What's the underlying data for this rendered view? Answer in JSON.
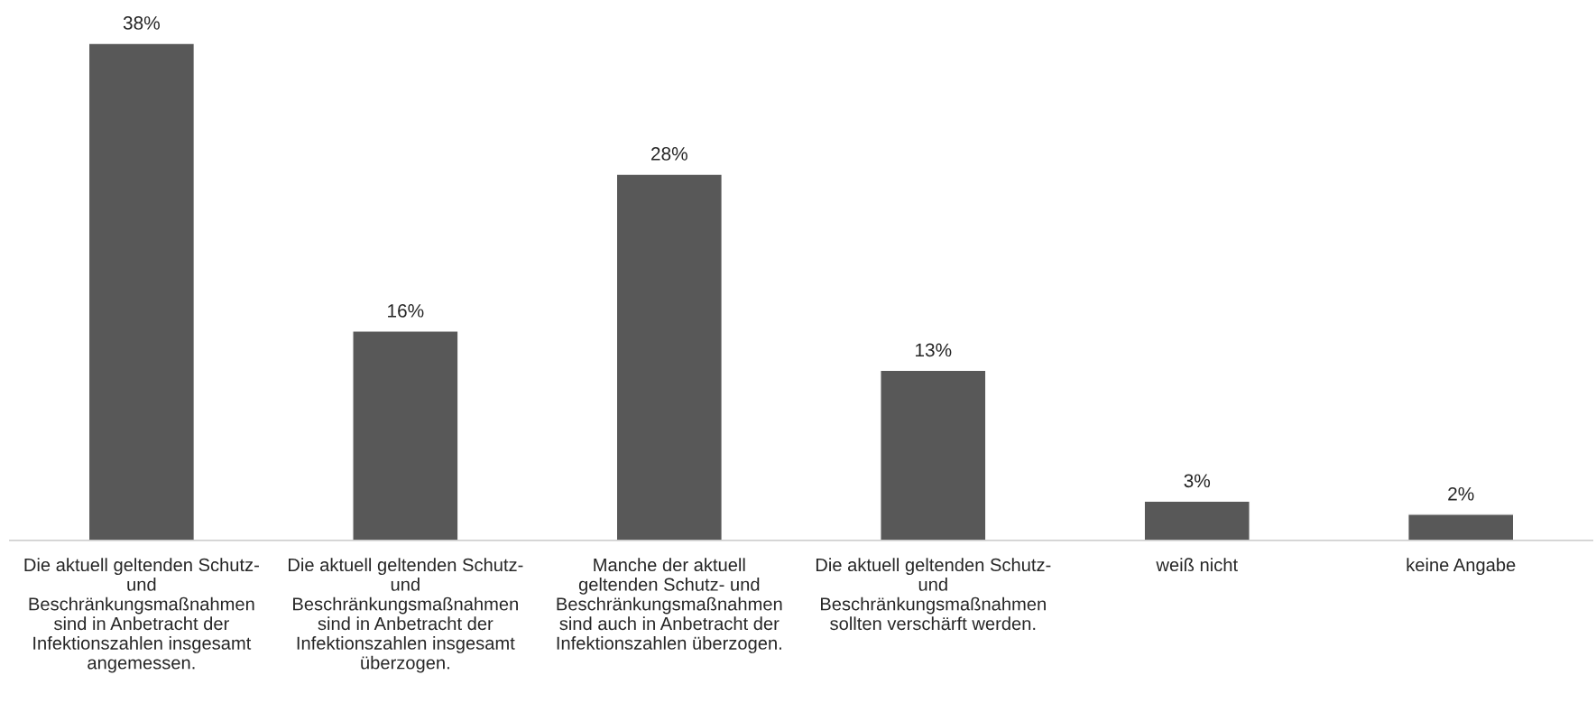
{
  "chart_data": {
    "type": "bar",
    "categories": [
      "Die aktuell geltenden Schutz-\nund\nBeschränkungsmaßnahmen\nsind in Anbetracht der\nInfektionszahlen insgesamt\nangemessen.",
      "Die aktuell geltenden Schutz-\nund\nBeschränkungsmaßnahmen\nsind in Anbetracht der\nInfektionszahlen insgesamt\nüberzogen.",
      "Manche der aktuell\ngeltenden Schutz- und\nBeschränkungsmaßnahmen\nsind auch in Anbetracht der\nInfektionszahlen überzogen.",
      "Die aktuell geltenden Schutz-\nund\nBeschränkungsmaßnahmen\nsollten verschärft werden.",
      "weiß nicht",
      "keine Angabe"
    ],
    "values": [
      38,
      16,
      28,
      13,
      3,
      2
    ],
    "value_labels": [
      "38%",
      "16%",
      "28%",
      "13%",
      "3%",
      "2%"
    ],
    "color": "#585858",
    "grid": false,
    "legend": false
  }
}
